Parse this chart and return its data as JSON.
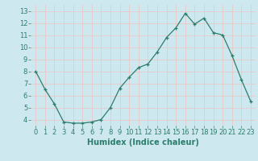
{
  "x": [
    0,
    1,
    2,
    3,
    4,
    5,
    6,
    7,
    8,
    9,
    10,
    11,
    12,
    13,
    14,
    15,
    16,
    17,
    18,
    19,
    20,
    21,
    22,
    23
  ],
  "y": [
    8.0,
    6.5,
    5.3,
    3.8,
    3.7,
    3.7,
    3.8,
    4.0,
    5.0,
    6.6,
    7.5,
    8.3,
    8.6,
    9.6,
    10.8,
    11.6,
    12.8,
    11.9,
    12.4,
    11.2,
    11.0,
    9.3,
    7.3,
    5.5
  ],
  "line_color": "#2d7d6e",
  "marker": "+",
  "marker_size": 3,
  "bg_color": "#cde8ee",
  "grid_color": "#e8c8c8",
  "xlabel": "Humidex (Indice chaleur)",
  "ylabel": "",
  "xlim": [
    -0.5,
    23.5
  ],
  "ylim": [
    3.5,
    13.5
  ],
  "yticks": [
    4,
    5,
    6,
    7,
    8,
    9,
    10,
    11,
    12,
    13
  ],
  "xticks": [
    0,
    1,
    2,
    3,
    4,
    5,
    6,
    7,
    8,
    9,
    10,
    11,
    12,
    13,
    14,
    15,
    16,
    17,
    18,
    19,
    20,
    21,
    22,
    23
  ],
  "label_fontsize": 7,
  "tick_fontsize": 6
}
